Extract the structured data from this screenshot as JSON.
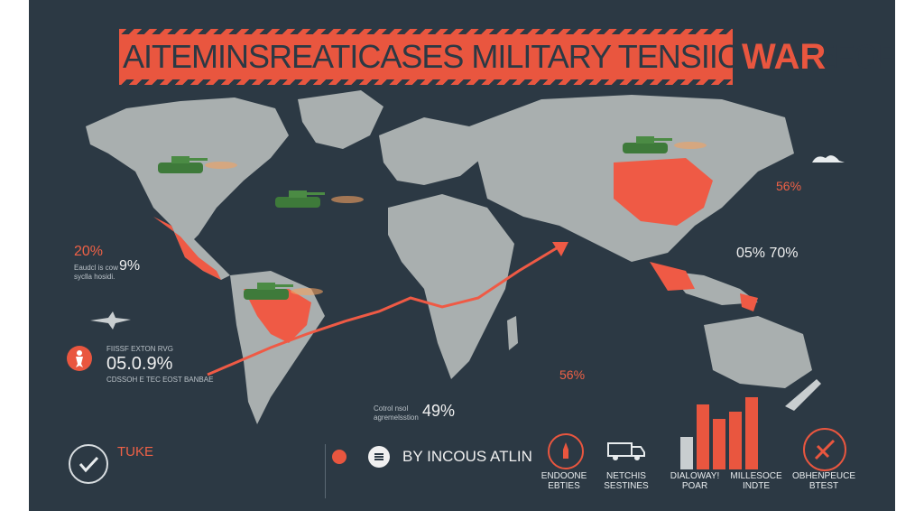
{
  "header": {
    "title": "AITEMINSREATICASES MILITARY TENSIIONS BEFORE",
    "war": "WAR"
  },
  "colors": {
    "background": "#2c3944",
    "accent": "#e9563f",
    "land": "#a9afaf",
    "highlight": "#ef5a45"
  },
  "stats": {
    "left_top": "20%",
    "left_top_sub": "9%",
    "left_top_caption": "Eaudcl is cow\nsyclla hosidi.",
    "left_mid_caption": "FIISSF EXTON RVG",
    "left_mid_value": "05.0.9%",
    "left_mid_sub": "CDSSOH E TEC EOST BANBAE",
    "center_value": "49%",
    "center_caption": "Cotrol nsol\nagremelsstion",
    "right_top_value": "56%",
    "right_mid_value": "05% 70%",
    "right_low_value": "56%"
  },
  "bottom": {
    "left_title": "TUKE",
    "left_icon": "checkmark-icon",
    "center_title": "BY INCOUS ATLIN",
    "center_icon": "list-icon",
    "icons": [
      {
        "icon": "missile-icon",
        "label": "ENDOONE\nEBTIES"
      },
      {
        "icon": "truck-icon",
        "label": "NETCHIS\nSESTINES"
      },
      {
        "icon": "bar-chart-icon",
        "label": "DIALOWAY!\nPOAR"
      },
      {
        "icon": "no-weapons-icon",
        "label": "MILLESOCE\nINDTE"
      },
      {
        "icon": "slash-icon",
        "label": "OBHENPEUCE\nBTEST"
      }
    ],
    "bars": [
      0.45,
      0.9,
      0.7,
      0.8,
      1.0
    ]
  }
}
